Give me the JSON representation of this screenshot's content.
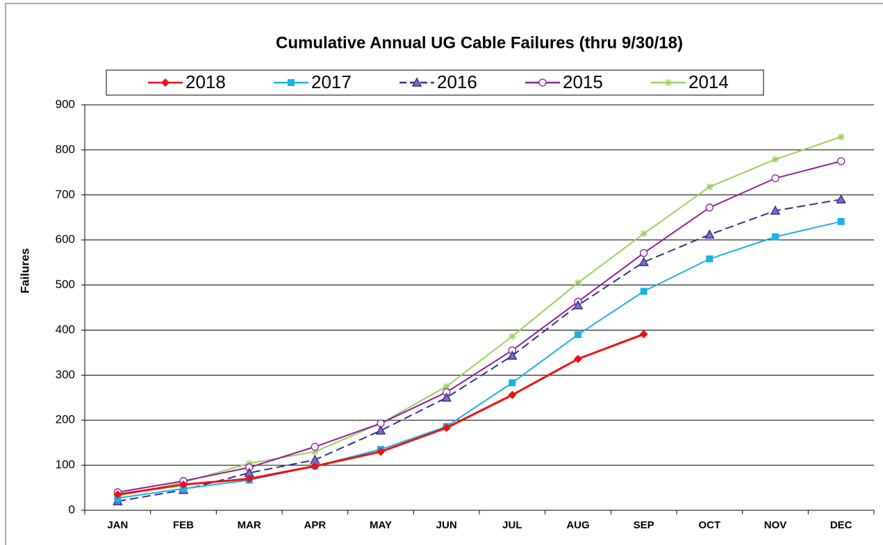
{
  "chart_data": {
    "type": "line",
    "title": "Cumulative Annual UG Cable Failures (thru 9/30/18)",
    "y_label": "Failures",
    "categories": [
      "JAN",
      "FEB",
      "MAR",
      "APR",
      "MAY",
      "JUN",
      "JUL",
      "AUG",
      "SEP",
      "OCT",
      "NOV",
      "DEC"
    ],
    "series": [
      {
        "name": "2018",
        "color": "#ee1111",
        "marker": "diamond",
        "dash": false,
        "values": [
          35,
          57,
          70,
          98,
          130,
          183,
          256,
          336,
          391,
          null,
          null,
          null
        ]
      },
      {
        "name": "2017",
        "color": "#1ab0e8",
        "marker": "square",
        "dash": false,
        "values": [
          27,
          48,
          67,
          98,
          135,
          186,
          283,
          390,
          486,
          558,
          607,
          641
        ]
      },
      {
        "name": "2016",
        "color": "#2e3192",
        "marker": "triangle",
        "dash": true,
        "values": [
          20,
          45,
          83,
          112,
          177,
          250,
          343,
          455,
          551,
          612,
          665,
          690
        ]
      },
      {
        "name": "2015",
        "color": "#8e1c9e",
        "marker": "circle",
        "dash": false,
        "values": [
          40,
          65,
          95,
          141,
          193,
          262,
          355,
          463,
          571,
          672,
          737,
          775
        ]
      },
      {
        "name": "2014",
        "color": "#9ccf5f",
        "marker": "star",
        "dash": false,
        "values": [
          32,
          62,
          104,
          130,
          193,
          275,
          386,
          505,
          614,
          718,
          779,
          829
        ]
      }
    ],
    "ylim": [
      0,
      900
    ],
    "yticks": [
      0,
      100,
      200,
      300,
      400,
      500,
      600,
      700,
      800,
      900
    ],
    "grid": true,
    "legend": "top"
  }
}
